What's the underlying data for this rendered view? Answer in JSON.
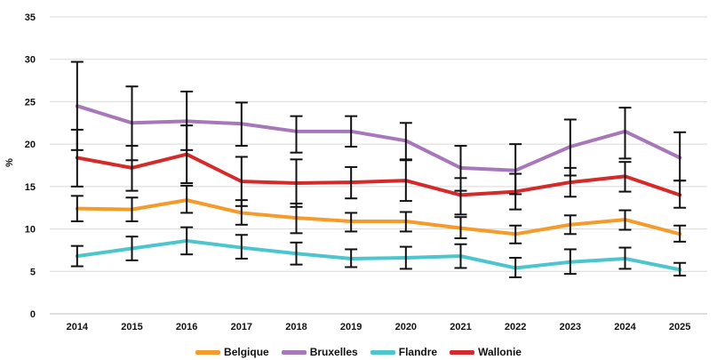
{
  "chart_data": {
    "type": "line",
    "title": "",
    "xlabel": "",
    "ylabel": "%",
    "ylim": [
      0,
      35
    ],
    "yticks": [
      0,
      5,
      10,
      15,
      20,
      25,
      30,
      35
    ],
    "categories": [
      "2014",
      "2015",
      "2016",
      "2017",
      "2018",
      "2019",
      "2020",
      "2021",
      "2022",
      "2023",
      "2024",
      "2025"
    ],
    "legend_position": "bottom",
    "error_bars": true,
    "series": [
      {
        "name": "Belgique",
        "color": "#f59b2a",
        "values": [
          12.4,
          12.3,
          13.4,
          11.9,
          11.3,
          10.9,
          10.9,
          10.1,
          9.4,
          10.5,
          11.1,
          9.4
        ],
        "lower": [
          10.9,
          10.9,
          11.9,
          10.5,
          9.5,
          9.7,
          9.7,
          8.9,
          8.3,
          9.4,
          9.9,
          8.5
        ],
        "upper": [
          13.9,
          13.7,
          15.1,
          13.4,
          13.0,
          11.9,
          12.0,
          11.4,
          10.4,
          11.6,
          12.2,
          10.4
        ]
      },
      {
        "name": "Bruxelles",
        "color": "#a678b9",
        "values": [
          24.5,
          22.5,
          22.7,
          22.4,
          21.5,
          21.5,
          20.4,
          17.2,
          16.9,
          19.7,
          21.5,
          18.4
        ],
        "lower": [
          19.3,
          18.1,
          19.3,
          19.8,
          19.0,
          19.7,
          18.1,
          14.5,
          14.1,
          16.3,
          18.3,
          15.7
        ],
        "upper": [
          29.7,
          26.8,
          26.2,
          24.9,
          23.3,
          23.3,
          22.5,
          19.8,
          20.0,
          22.9,
          24.3,
          21.4
        ]
      },
      {
        "name": "Flandre",
        "color": "#4bc6cc",
        "values": [
          6.8,
          7.7,
          8.6,
          7.8,
          7.1,
          6.5,
          6.6,
          6.8,
          5.4,
          6.1,
          6.5,
          5.2
        ],
        "lower": [
          5.6,
          6.3,
          7.0,
          6.5,
          5.8,
          5.5,
          5.3,
          5.4,
          4.3,
          4.7,
          5.3,
          4.5
        ],
        "upper": [
          8.0,
          9.1,
          10.2,
          9.3,
          8.4,
          7.6,
          7.9,
          8.2,
          6.6,
          7.6,
          7.8,
          6.0
        ]
      },
      {
        "name": "Wallonie",
        "color": "#d42a2a",
        "values": [
          18.4,
          17.2,
          18.8,
          15.6,
          15.4,
          15.5,
          15.7,
          14.0,
          14.4,
          15.5,
          16.2,
          14.0
        ],
        "lower": [
          15.0,
          14.5,
          15.4,
          12.7,
          12.6,
          13.6,
          13.3,
          11.7,
          12.3,
          13.8,
          14.4,
          12.5
        ],
        "upper": [
          21.7,
          19.8,
          22.2,
          18.5,
          18.2,
          17.3,
          18.2,
          16.0,
          16.5,
          17.2,
          17.9,
          15.7
        ]
      }
    ]
  }
}
